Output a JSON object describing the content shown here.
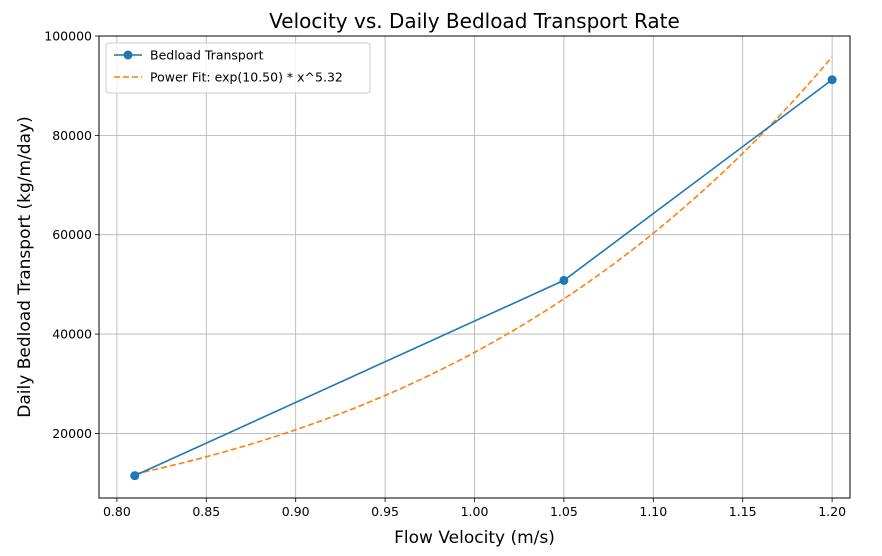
{
  "chart_data": {
    "type": "line",
    "title": "Velocity vs. Daily Bedload Transport Rate",
    "xlabel": "Flow Velocity (m/s)",
    "ylabel": "Daily Bedload Transport (kg/m/day)",
    "xlim": [
      0.79,
      1.21
    ],
    "ylim": [
      7000,
      100000
    ],
    "x_ticks": [
      0.8,
      0.85,
      0.9,
      0.95,
      1.0,
      1.05,
      1.1,
      1.15,
      1.2
    ],
    "x_tick_labels": [
      "0.80",
      "0.85",
      "0.90",
      "0.95",
      "1.00",
      "1.05",
      "1.10",
      "1.15",
      "1.20"
    ],
    "y_ticks": [
      20000,
      40000,
      60000,
      80000,
      100000
    ],
    "y_tick_labels": [
      "20000",
      "40000",
      "60000",
      "80000",
      "100000"
    ],
    "grid": true,
    "legend_position": "top-left",
    "series": [
      {
        "name": "Bedload Transport",
        "style": "solid-with-markers",
        "color": "#1f77b4",
        "x": [
          0.81,
          1.05,
          1.2
        ],
        "y": [
          11500,
          50800,
          91200
        ]
      },
      {
        "name": "Power Fit: exp(10.50) * x^5.32",
        "style": "dashed",
        "color": "#ff7f0e",
        "fit": {
          "a": 10.5,
          "b": 5.32,
          "x_range": [
            0.81,
            1.2
          ]
        }
      }
    ]
  }
}
